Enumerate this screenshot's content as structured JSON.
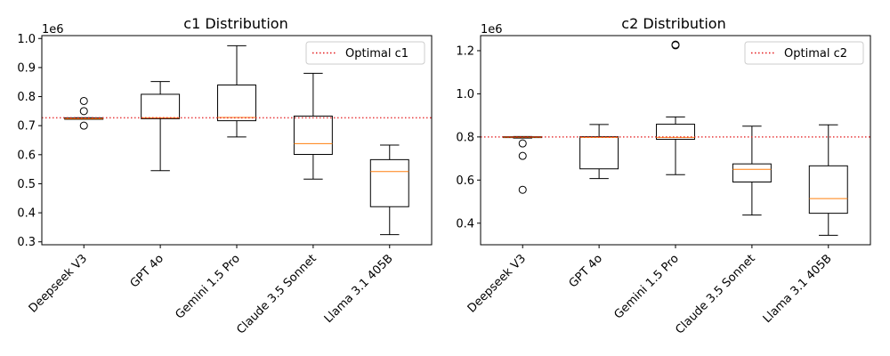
{
  "chart_data": [
    {
      "type": "boxplot",
      "title": "c1 Distribution",
      "offset_label": "1e6",
      "ylim": [
        0.29,
        1.01
      ],
      "yticks": [
        0.3,
        0.4,
        0.5,
        0.6,
        0.7,
        0.8,
        0.9,
        1.0
      ],
      "ytick_labels": [
        "0.3",
        "0.4",
        "0.5",
        "0.6",
        "0.7",
        "0.8",
        "0.9",
        "1.0"
      ],
      "reference_line": {
        "value": 0.727,
        "label": "Optimal c1",
        "color": "#e41a1c"
      },
      "legend_position": "upper-right",
      "categories": [
        "Deepseek V3",
        "GPT 4o",
        "Gemini 1.5 Pro",
        "Claude 3.5 Sonnet",
        "Llama 3.1 405B"
      ],
      "boxes": [
        {
          "whisker_low": 0.722,
          "q1": 0.722,
          "median": 0.724,
          "q3": 0.727,
          "whisker_high": 0.727,
          "outliers": [
            0.785,
            0.75,
            0.7
          ]
        },
        {
          "whisker_low": 0.545,
          "q1": 0.724,
          "median": 0.727,
          "q3": 0.808,
          "whisker_high": 0.852,
          "outliers": []
        },
        {
          "whisker_low": 0.661,
          "q1": 0.717,
          "median": 0.728,
          "q3": 0.84,
          "whisker_high": 0.975,
          "outliers": []
        },
        {
          "whisker_low": 0.516,
          "q1": 0.601,
          "median": 0.638,
          "q3": 0.733,
          "whisker_high": 0.88,
          "outliers": []
        },
        {
          "whisker_low": 0.325,
          "q1": 0.421,
          "median": 0.542,
          "q3": 0.583,
          "whisker_high": 0.633,
          "outliers": []
        }
      ]
    },
    {
      "type": "boxplot",
      "title": "c2 Distribution",
      "offset_label": "1e6",
      "ylim": [
        0.3,
        1.27
      ],
      "yticks": [
        0.4,
        0.6,
        0.8,
        1.0,
        1.2
      ],
      "ytick_labels": [
        "0.4",
        "0.6",
        "0.8",
        "1.0",
        "1.2"
      ],
      "reference_line": {
        "value": 0.8,
        "label": "Optimal c2",
        "color": "#e41a1c"
      },
      "legend_position": "upper-right",
      "categories": [
        "Deepseek V3",
        "GPT 4o",
        "Gemini 1.5 Pro",
        "Claude 3.5 Sonnet",
        "Llama 3.1 405B"
      ],
      "boxes": [
        {
          "whisker_low": 0.795,
          "q1": 0.797,
          "median": 0.799,
          "q3": 0.801,
          "whisker_high": 0.802,
          "outliers": [
            0.77,
            0.712,
            0.555
          ]
        },
        {
          "whisker_low": 0.607,
          "q1": 0.652,
          "median": 0.798,
          "q3": 0.801,
          "whisker_high": 0.858,
          "outliers": []
        },
        {
          "whisker_low": 0.625,
          "q1": 0.789,
          "median": 0.798,
          "q3": 0.859,
          "whisker_high": 0.893,
          "outliers": [
            1.228,
            1.225
          ]
        },
        {
          "whisker_low": 0.438,
          "q1": 0.591,
          "median": 0.65,
          "q3": 0.675,
          "whisker_high": 0.85,
          "outliers": []
        },
        {
          "whisker_low": 0.344,
          "q1": 0.446,
          "median": 0.514,
          "q3": 0.666,
          "whisker_high": 0.856,
          "outliers": []
        }
      ]
    }
  ]
}
